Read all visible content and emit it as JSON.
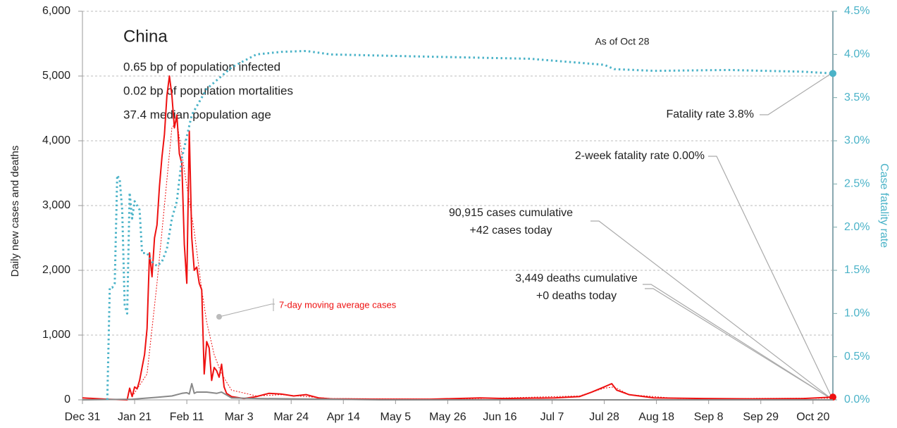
{
  "chart_data": {
    "type": "line",
    "title": "China",
    "subtitle": [
      "0.65 bp of population infected",
      "0.02 bp of population mortalities",
      "37.4 median population age"
    ],
    "ylabel": "Daily new cases and deaths",
    "y2label": "Case fatality rate",
    "annotations": [
      "As of Oct 28",
      "Fatality rate 3.8%",
      "2-week fatality rate 0.00%",
      "90,915 cases cumulative",
      "+42 cases today",
      "3,449 deaths cumulative",
      "+0 deaths today",
      "7-day moving average cases"
    ],
    "xlim": [
      0,
      302
    ],
    "xticks": [
      {
        "value": 0,
        "label": "Dec 31"
      },
      {
        "value": 21,
        "label": "Jan 21"
      },
      {
        "value": 42,
        "label": "Feb 11"
      },
      {
        "value": 63,
        "label": "Mar 3"
      },
      {
        "value": 84,
        "label": "Mar 24"
      },
      {
        "value": 105,
        "label": "Apr 14"
      },
      {
        "value": 126,
        "label": "May 5"
      },
      {
        "value": 147,
        "label": "May 26"
      },
      {
        "value": 168,
        "label": "Jun 16"
      },
      {
        "value": 189,
        "label": "Jul 7"
      },
      {
        "value": 210,
        "label": "Jul 28"
      },
      {
        "value": 231,
        "label": "Aug 18"
      },
      {
        "value": 252,
        "label": "Sep 8"
      },
      {
        "value": 273,
        "label": "Sep 29"
      },
      {
        "value": 294,
        "label": "Oct 20"
      }
    ],
    "ylim": [
      0,
      6000
    ],
    "yticks": [
      0,
      {
        "value": 1000,
        "label": "1,000"
      },
      {
        "value": 2000,
        "label": "2,000"
      },
      {
        "value": 3000,
        "label": "3,000"
      },
      {
        "value": 4000,
        "label": "4,000"
      },
      {
        "value": 5000,
        "label": "5,000"
      },
      {
        "value": 6000,
        "label": "6,000"
      }
    ],
    "y2lim": [
      0,
      4.5
    ],
    "y2ticks": [
      {
        "value": 0,
        "label": "0.0%"
      },
      {
        "value": 0.5,
        "label": "0.5%"
      },
      {
        "value": 1,
        "label": "1.0%"
      },
      {
        "value": 1.5,
        "label": "1.5%"
      },
      {
        "value": 2,
        "label": "2.0%"
      },
      {
        "value": 2.5,
        "label": "2.5%"
      },
      {
        "value": 3,
        "label": "3.0%"
      },
      {
        "value": 3.5,
        "label": "3.5%"
      },
      {
        "value": 4,
        "label": "4.0%"
      },
      {
        "value": 4.5,
        "label": "4.5%"
      }
    ],
    "grid": true,
    "series": [
      {
        "color": "#ee1111",
        "style": "solid",
        "x": [
          0,
          10,
          18,
          19,
          20,
          21,
          22,
          23,
          24,
          25,
          26,
          27,
          28,
          29,
          30,
          31,
          32,
          33,
          34,
          35,
          36,
          37,
          38,
          39,
          40,
          41,
          42,
          43,
          44,
          45,
          46,
          47,
          48,
          49,
          50,
          51,
          52,
          53,
          54,
          55,
          56,
          57,
          58,
          60,
          65,
          70,
          75,
          80,
          85,
          90,
          95,
          100,
          120,
          140,
          160,
          170,
          190,
          200,
          205,
          210,
          213,
          215,
          220,
          230,
          250,
          270,
          290,
          302
        ],
        "values": [
          30,
          10,
          0,
          180,
          50,
          200,
          170,
          300,
          500,
          700,
          1100,
          2270,
          1900,
          2500,
          2700,
          3300,
          3750,
          4100,
          4700,
          5000,
          4700,
          4200,
          4400,
          3800,
          3650,
          2400,
          1800,
          4150,
          2500,
          2000,
          2050,
          1800,
          1700,
          400,
          900,
          800,
          300,
          500,
          450,
          350,
          550,
          200,
          100,
          50,
          20,
          50,
          100,
          90,
          60,
          80,
          30,
          15,
          10,
          10,
          30,
          20,
          30,
          50,
          120,
          200,
          250,
          150,
          80,
          30,
          20,
          15,
          20,
          42
        ]
      },
      {
        "color": "#ee1111",
        "style": "dotted",
        "x": [
          20,
          26,
          30,
          33,
          36,
          38,
          40,
          42,
          45,
          48,
          50,
          53,
          56,
          60,
          70,
          80,
          90,
          100,
          150,
          200,
          210,
          214,
          220,
          240,
          302
        ],
        "values": [
          50,
          400,
          1800,
          3000,
          4200,
          4300,
          3800,
          3300,
          2600,
          1700,
          1200,
          700,
          400,
          150,
          60,
          80,
          50,
          20,
          10,
          60,
          180,
          200,
          80,
          20,
          25
        ]
      },
      {
        "color": "#888888",
        "style": "solid",
        "x": [
          0,
          20,
          30,
          36,
          40,
          42,
          43,
          44,
          45,
          46,
          50,
          54,
          56,
          60,
          70,
          100,
          120,
          302
        ],
        "values": [
          0,
          10,
          40,
          60,
          100,
          110,
          90,
          250,
          100,
          120,
          120,
          100,
          120,
          30,
          20,
          10,
          0,
          0
        ]
      },
      {
        "color": "#4bb3c8",
        "style": "dotted",
        "axis": "y2",
        "x": [
          10,
          11,
          12,
          13,
          14,
          15,
          16,
          17,
          18,
          19,
          20,
          21,
          22,
          23,
          24,
          26,
          28,
          30,
          32,
          34,
          36,
          38,
          40,
          44,
          50,
          60,
          70,
          80,
          90,
          100,
          130,
          180,
          210,
          214,
          230,
          260,
          290,
          302
        ],
        "values": [
          0,
          1.3,
          1.3,
          1.35,
          2.6,
          2.55,
          2.2,
          1.1,
          1.0,
          2.4,
          2.1,
          2.3,
          2.25,
          2.2,
          1.7,
          1.7,
          1.6,
          1.55,
          1.6,
          1.75,
          2.1,
          2.3,
          2.8,
          3.3,
          3.6,
          3.85,
          4.0,
          4.03,
          4.04,
          4.0,
          3.98,
          3.95,
          3.88,
          3.83,
          3.81,
          3.82,
          3.8,
          3.78
        ]
      }
    ]
  }
}
